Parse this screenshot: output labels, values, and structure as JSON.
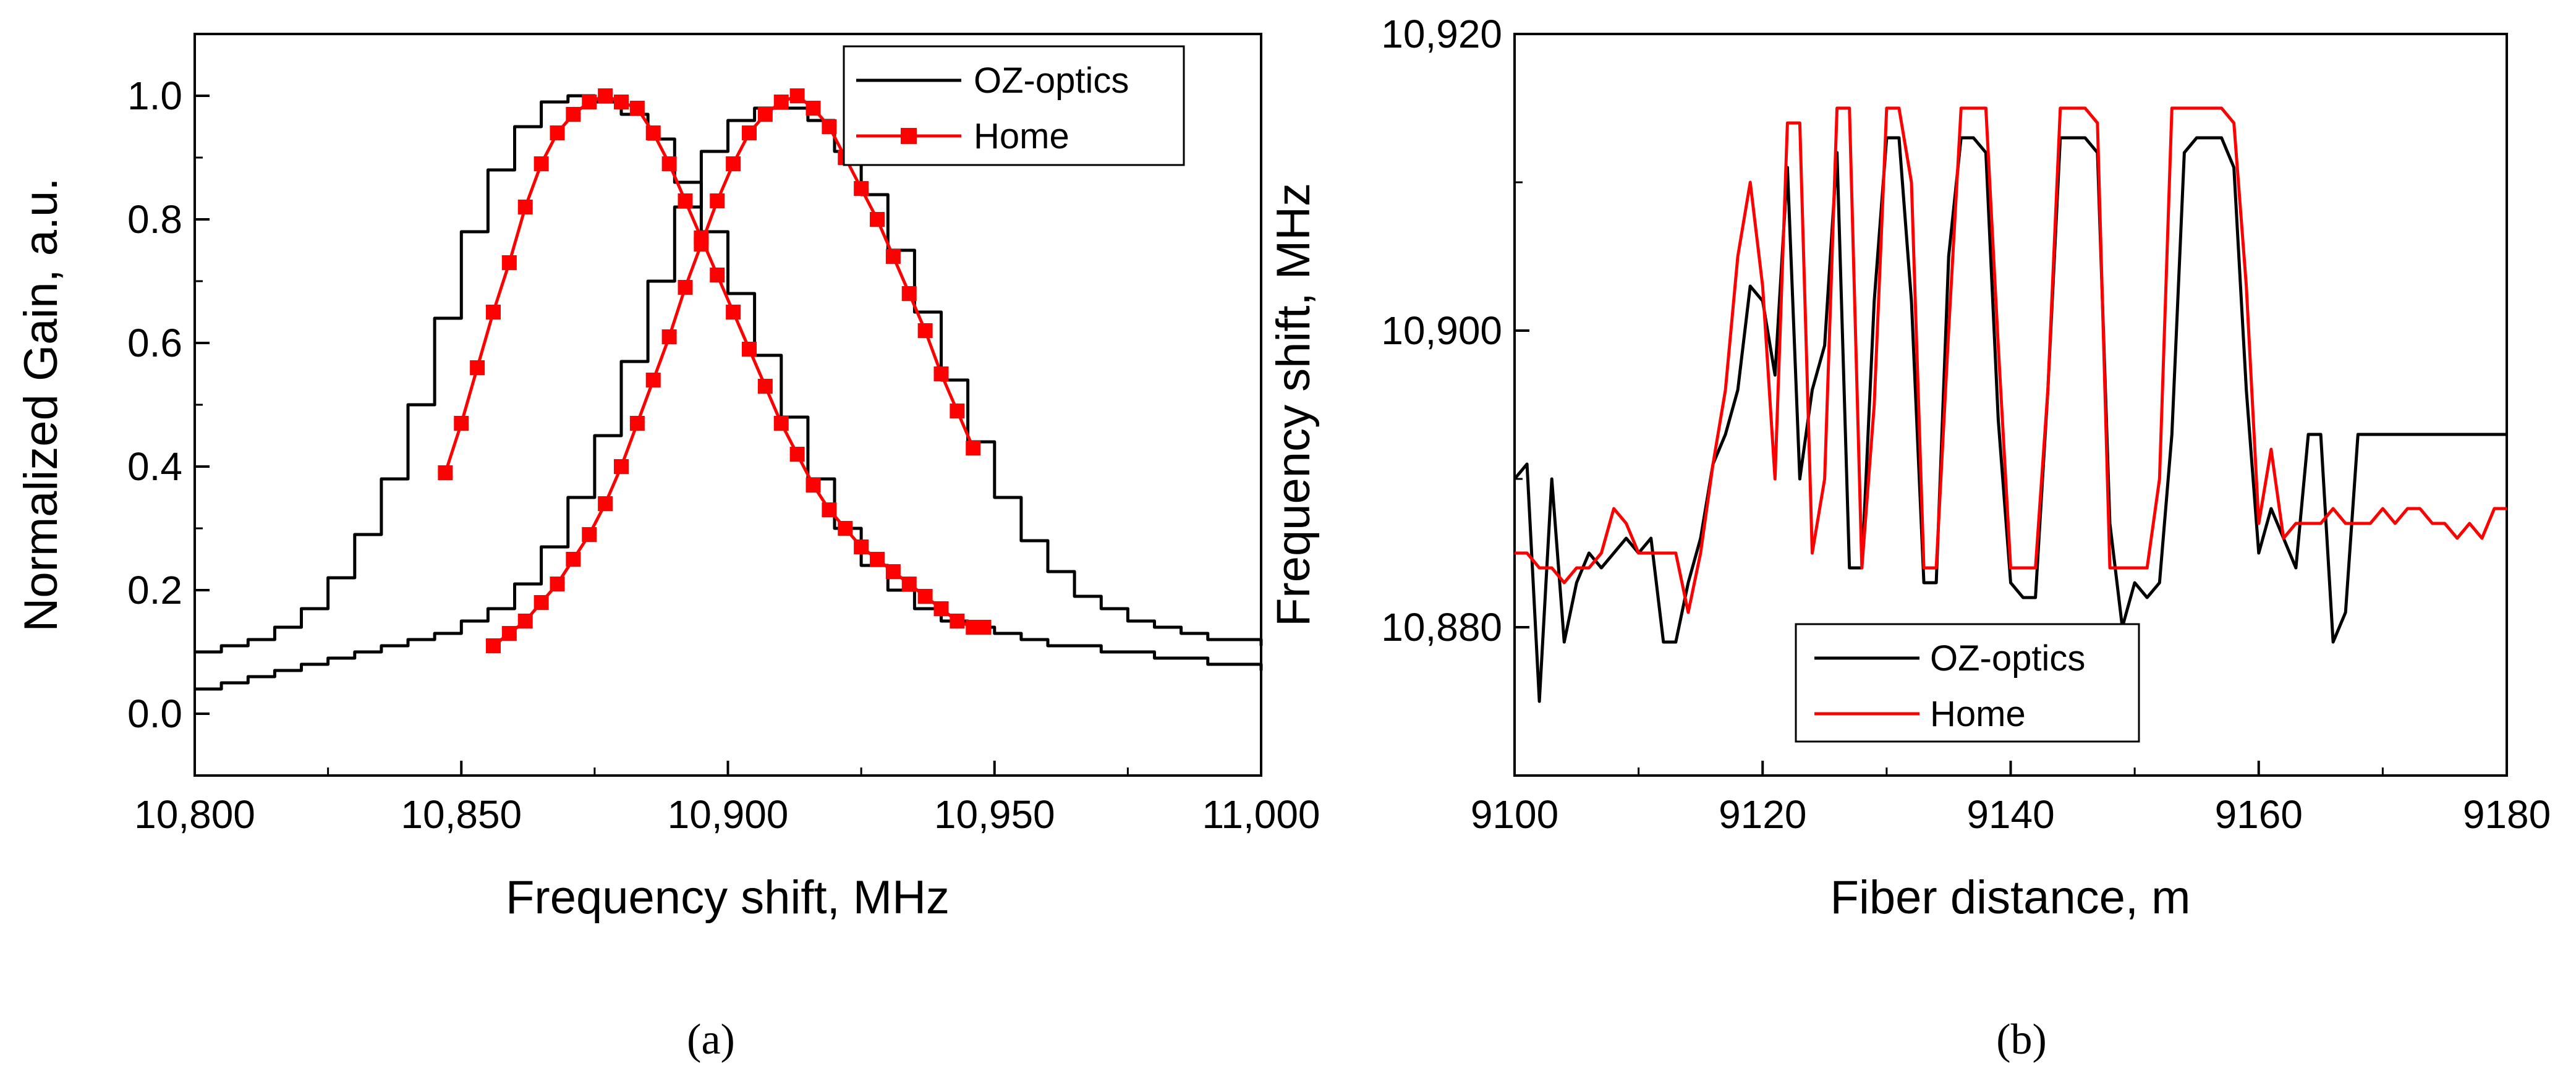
{
  "chart_data": [
    {
      "type": "line",
      "panel_label": "(a)",
      "xlabel": "Frequency shift, MHz",
      "ylabel": "Normalized Gain, a.u.",
      "xlim": [
        10800,
        11000
      ],
      "ylim": [
        -0.1,
        1.1
      ],
      "x_ticks": [
        10800,
        10850,
        10900,
        10950,
        11000
      ],
      "x_tick_labels": [
        "10,800",
        "10,850",
        "10,900",
        "10,950",
        "11,000"
      ],
      "y_ticks": [
        0.0,
        0.2,
        0.4,
        0.6,
        0.8,
        1.0
      ],
      "y_tick_labels": [
        "0.0",
        "0.2",
        "0.4",
        "0.6",
        "0.8",
        "1.0"
      ],
      "legend": {
        "position": "top-right",
        "entries": [
          "OZ-optics",
          "Home"
        ]
      },
      "series": [
        {
          "name": "OZ-optics",
          "color": "#000000",
          "style": "step-line",
          "x": [
            10800,
            10805,
            10810,
            10815,
            10820,
            10825,
            10830,
            10835,
            10840,
            10845,
            10850,
            10855,
            10860,
            10865,
            10870,
            10875,
            10880,
            10885,
            10890,
            10895,
            10900,
            10905,
            10910,
            10915,
            10920,
            10925,
            10930,
            10935,
            10940,
            10945,
            10950,
            10955,
            10960,
            10965,
            10970,
            10975,
            10980,
            10985,
            10990,
            10995,
            11000
          ],
          "values": [
            0.1,
            0.11,
            0.12,
            0.14,
            0.17,
            0.22,
            0.29,
            0.38,
            0.5,
            0.64,
            0.78,
            0.88,
            0.95,
            0.99,
            1.0,
            0.99,
            0.97,
            0.93,
            0.86,
            0.78,
            0.68,
            0.58,
            0.48,
            0.38,
            0.3,
            0.24,
            0.2,
            0.17,
            0.15,
            0.14,
            0.13,
            0.12,
            0.11,
            0.11,
            0.1,
            0.1,
            0.09,
            0.09,
            0.08,
            0.08,
            0.07
          ]
        },
        {
          "name": "OZ-optics",
          "color": "#000000",
          "style": "step-line",
          "x": [
            10800,
            10805,
            10810,
            10815,
            10820,
            10825,
            10830,
            10835,
            10840,
            10845,
            10850,
            10855,
            10860,
            10865,
            10870,
            10875,
            10880,
            10885,
            10890,
            10895,
            10900,
            10905,
            10910,
            10915,
            10920,
            10925,
            10930,
            10935,
            10940,
            10945,
            10950,
            10955,
            10960,
            10965,
            10970,
            10975,
            10980,
            10985,
            10990,
            10995,
            11000
          ],
          "values": [
            0.04,
            0.05,
            0.06,
            0.07,
            0.08,
            0.09,
            0.1,
            0.11,
            0.12,
            0.13,
            0.15,
            0.17,
            0.21,
            0.27,
            0.35,
            0.45,
            0.57,
            0.7,
            0.82,
            0.91,
            0.96,
            0.98,
            0.98,
            0.96,
            0.91,
            0.84,
            0.75,
            0.65,
            0.54,
            0.44,
            0.35,
            0.28,
            0.23,
            0.19,
            0.17,
            0.15,
            0.14,
            0.13,
            0.12,
            0.12,
            0.11
          ]
        },
        {
          "name": "Home",
          "color": "#ff0000",
          "style": "line-with-square-markers",
          "x": [
            10847,
            10850,
            10853,
            10856,
            10859,
            10862,
            10865,
            10868,
            10871,
            10874,
            10877,
            10880,
            10883,
            10886,
            10889,
            10892,
            10895,
            10898,
            10901,
            10904,
            10907,
            10910,
            10913,
            10916,
            10919,
            10922,
            10925,
            10928,
            10931,
            10934,
            10937,
            10940,
            10943,
            10946,
            10948
          ],
          "values": [
            0.39,
            0.47,
            0.56,
            0.65,
            0.73,
            0.82,
            0.89,
            0.94,
            0.97,
            0.99,
            1.0,
            0.99,
            0.98,
            0.94,
            0.89,
            0.83,
            0.77,
            0.71,
            0.65,
            0.59,
            0.53,
            0.47,
            0.42,
            0.37,
            0.33,
            0.3,
            0.27,
            0.25,
            0.23,
            0.21,
            0.19,
            0.17,
            0.15,
            0.14,
            0.14
          ]
        },
        {
          "name": "Home",
          "color": "#ff0000",
          "style": "line-with-square-markers",
          "x": [
            10856,
            10859,
            10862,
            10865,
            10868,
            10871,
            10874,
            10877,
            10880,
            10883,
            10886,
            10889,
            10892,
            10895,
            10898,
            10901,
            10904,
            10907,
            10910,
            10913,
            10916,
            10919,
            10922,
            10925,
            10928,
            10931,
            10934,
            10937,
            10940,
            10943,
            10946
          ],
          "values": [
            0.11,
            0.13,
            0.15,
            0.18,
            0.21,
            0.25,
            0.29,
            0.34,
            0.4,
            0.47,
            0.54,
            0.61,
            0.69,
            0.76,
            0.83,
            0.89,
            0.94,
            0.97,
            0.99,
            1.0,
            0.98,
            0.95,
            0.9,
            0.85,
            0.8,
            0.74,
            0.68,
            0.62,
            0.55,
            0.49,
            0.43
          ]
        }
      ]
    },
    {
      "type": "line",
      "panel_label": "(b)",
      "xlabel": "Fiber distance, m",
      "ylabel": "Frequency shift, MHz",
      "xlim": [
        9100,
        9180
      ],
      "ylim": [
        10870,
        10920
      ],
      "x_ticks": [
        9100,
        9120,
        9140,
        9160,
        9180
      ],
      "x_tick_labels": [
        "9100",
        "9120",
        "9140",
        "9160",
        "9180"
      ],
      "y_ticks": [
        10880,
        10900,
        10920
      ],
      "y_tick_labels": [
        "10,880",
        "10,900",
        "10,920"
      ],
      "legend": {
        "position": "bottom-left",
        "entries": [
          "OZ-optics",
          "Home"
        ]
      },
      "series": [
        {
          "name": "OZ-optics",
          "color": "#000000",
          "x": [
            9100,
            9101,
            9102,
            9103,
            9104,
            9105,
            9106,
            9107,
            9108,
            9109,
            9110,
            9111,
            9112,
            9113,
            9114,
            9115,
            9116,
            9117,
            9118,
            9119,
            9120,
            9121,
            9122,
            9123,
            9124,
            9125,
            9126,
            9127,
            9128,
            9129,
            9130,
            9131,
            9132,
            9133,
            9134,
            9135,
            9136,
            9137,
            9138,
            9139,
            9140,
            9141,
            9142,
            9143,
            9144,
            9145,
            9146,
            9147,
            9148,
            9149,
            9150,
            9151,
            9152,
            9153,
            9154,
            9155,
            9156,
            9157,
            9158,
            9159,
            9160,
            9161,
            9162,
            9163,
            9164,
            9165,
            9166,
            9167,
            9168,
            9169,
            9170,
            9171,
            9172,
            9173,
            9174,
            9175,
            9176,
            9177,
            9178,
            9179,
            9180
          ],
          "values": [
            10890,
            10891,
            10875,
            10890,
            10879,
            10883,
            10885,
            10884,
            10885,
            10886,
            10885,
            10886,
            10879,
            10879,
            10883,
            10886,
            10891,
            10893,
            10896,
            10903,
            10902,
            10897,
            10911,
            10890,
            10896,
            10899,
            10912,
            10884,
            10884,
            10902,
            10913,
            10913,
            10902,
            10883,
            10883,
            10905,
            10913,
            10913,
            10912,
            10894,
            10883,
            10882,
            10882,
            10896,
            10913,
            10913,
            10913,
            10912,
            10887,
            10880,
            10883,
            10882,
            10883,
            10893,
            10912,
            10913,
            10913,
            10913,
            10911,
            10896,
            10885,
            10888,
            10886,
            10884,
            10893,
            10893,
            10879,
            10881,
            10893,
            10893,
            10893,
            10893,
            10893,
            10893,
            10893,
            10893,
            10893,
            10893,
            10893,
            10893,
            10893
          ]
        },
        {
          "name": "Home",
          "color": "#ff0000",
          "x": [
            9100,
            9101,
            9102,
            9103,
            9104,
            9105,
            9106,
            9107,
            9108,
            9109,
            9110,
            9111,
            9112,
            9113,
            9114,
            9115,
            9116,
            9117,
            9118,
            9119,
            9120,
            9121,
            9122,
            9123,
            9124,
            9125,
            9126,
            9127,
            9128,
            9129,
            9130,
            9131,
            9132,
            9133,
            9134,
            9135,
            9136,
            9137,
            9138,
            9139,
            9140,
            9141,
            9142,
            9143,
            9144,
            9145,
            9146,
            9147,
            9148,
            9149,
            9150,
            9151,
            9152,
            9153,
            9154,
            9155,
            9156,
            9157,
            9158,
            9159,
            9160,
            9161,
            9162,
            9163,
            9164,
            9165,
            9166,
            9167,
            9168,
            9169,
            9170,
            9171,
            9172,
            9173,
            9174,
            9175,
            9176,
            9177,
            9178,
            9179,
            9180
          ],
          "values": [
            10885,
            10885,
            10884,
            10884,
            10883,
            10884,
            10884,
            10885,
            10888,
            10887,
            10885,
            10885,
            10885,
            10885,
            10881,
            10885,
            10891,
            10896,
            10905,
            10910,
            10903,
            10890,
            10914,
            10914,
            10885,
            10890,
            10915,
            10915,
            10884,
            10895,
            10915,
            10915,
            10910,
            10884,
            10884,
            10900,
            10915,
            10915,
            10915,
            10899,
            10884,
            10884,
            10884,
            10896,
            10915,
            10915,
            10915,
            10914,
            10884,
            10884,
            10884,
            10884,
            10890,
            10915,
            10915,
            10915,
            10915,
            10915,
            10914,
            10903,
            10887,
            10892,
            10886,
            10887,
            10887,
            10887,
            10888,
            10887,
            10887,
            10887,
            10888,
            10887,
            10888,
            10888,
            10887,
            10887,
            10886,
            10887,
            10886,
            10888,
            10888
          ]
        }
      ]
    }
  ]
}
